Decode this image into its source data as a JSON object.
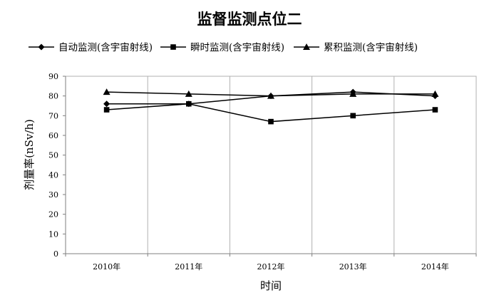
{
  "chart_data": {
    "type": "line",
    "title": "监督监测点位二",
    "xlabel": "时间",
    "ylabel": "剂量率(nSv/h)",
    "categories": [
      "2010年",
      "2011年",
      "2012年",
      "2013年",
      "2014年"
    ],
    "ylim": [
      0,
      90
    ],
    "yticks": [
      0,
      10,
      20,
      30,
      40,
      50,
      60,
      70,
      80,
      90
    ],
    "grid": "vertical",
    "legend_position": "top",
    "line_color": "#000000",
    "series": [
      {
        "name": "自动监测(含宇宙射线)",
        "marker": "diamond",
        "values": [
          76,
          76,
          80,
          82,
          80
        ]
      },
      {
        "name": "瞬时监测(含宇宙射线)",
        "marker": "square",
        "values": [
          73,
          76,
          67,
          70,
          73
        ]
      },
      {
        "name": "累积监测(含宇宙射线)",
        "marker": "triangle",
        "values": [
          82,
          81,
          80,
          81,
          81
        ]
      }
    ]
  }
}
